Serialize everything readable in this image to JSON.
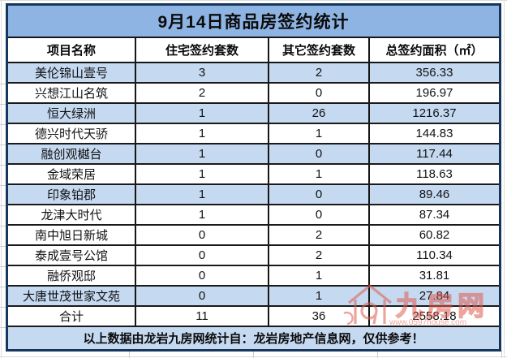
{
  "title": "9月14日商品房签约统计",
  "table": {
    "headers": [
      "项目名称",
      "住宅签约套数",
      "其它签约套数",
      "总签约面积（㎡）"
    ],
    "rows": [
      {
        "name": "美伦锦山壹号",
        "residential": "3",
        "other": "2",
        "area": "356.33",
        "shaded": true
      },
      {
        "name": "兴想江山名筑",
        "residential": "2",
        "other": "0",
        "area": "196.97",
        "shaded": false
      },
      {
        "name": "恒大绿洲",
        "residential": "1",
        "other": "26",
        "area": "1216.37",
        "shaded": true
      },
      {
        "name": "德兴时代天骄",
        "residential": "1",
        "other": "1",
        "area": "144.83",
        "shaded": false
      },
      {
        "name": "融创观樾台",
        "residential": "1",
        "other": "0",
        "area": "117.44",
        "shaded": true
      },
      {
        "name": "金域荣居",
        "residential": "1",
        "other": "1",
        "area": "118.63",
        "shaded": false
      },
      {
        "name": "印象铂郡",
        "residential": "1",
        "other": "0",
        "area": "89.46",
        "shaded": true
      },
      {
        "name": "龙津大时代",
        "residential": "1",
        "other": "0",
        "area": "87.34",
        "shaded": false
      },
      {
        "name": "南中旭日新城",
        "residential": "0",
        "other": "2",
        "area": "60.82",
        "shaded": false
      },
      {
        "name": "泰成壹号公馆",
        "residential": "0",
        "other": "2",
        "area": "110.34",
        "shaded": false
      },
      {
        "name": "融侨观邸",
        "residential": "0",
        "other": "1",
        "area": "31.81",
        "shaded": false
      },
      {
        "name": "大唐世茂世家文苑",
        "residential": "0",
        "other": "1",
        "area": "27.84",
        "shaded": true
      },
      {
        "name": "合计",
        "residential": "11",
        "other": "36",
        "area": "2558.18",
        "shaded": false,
        "is_total": true
      }
    ]
  },
  "footer": {
    "note": "以上数据由龙岩九房网统计自：龙岩房地产信息网，仅供参考！"
  },
  "watermark": {
    "logo_text": "九房网",
    "url": "www.0597house.com",
    "color": "#e05a4e"
  },
  "colors": {
    "title_bg": "#8db4e2",
    "shaded_row_bg": "#c5d9f1",
    "footer_bg": "#c5d9f1",
    "outer_border": "#16365c",
    "inner_border": "#1a1a1a"
  },
  "chart_data": {
    "type": "table",
    "title": "9月14日商品房签约统计",
    "columns": [
      "项目名称",
      "住宅签约套数",
      "其它签约套数",
      "总签约面积（㎡）"
    ],
    "rows": [
      [
        "美伦锦山壹号",
        3,
        2,
        356.33
      ],
      [
        "兴想江山名筑",
        2,
        0,
        196.97
      ],
      [
        "恒大绿洲",
        1,
        26,
        1216.37
      ],
      [
        "德兴时代天骄",
        1,
        1,
        144.83
      ],
      [
        "融创观樾台",
        1,
        0,
        117.44
      ],
      [
        "金域荣居",
        1,
        1,
        118.63
      ],
      [
        "印象铂郡",
        1,
        0,
        89.46
      ],
      [
        "龙津大时代",
        1,
        0,
        87.34
      ],
      [
        "南中旭日新城",
        0,
        2,
        60.82
      ],
      [
        "泰成壹号公馆",
        0,
        2,
        110.34
      ],
      [
        "融侨观邸",
        0,
        1,
        31.81
      ],
      [
        "大唐世茂世家文苑",
        0,
        1,
        27.84
      ],
      [
        "合计",
        11,
        36,
        2558.18
      ]
    ],
    "footnote": "以上数据由龙岩九房网统计自：龙岩房地产信息网，仅供参考！"
  }
}
